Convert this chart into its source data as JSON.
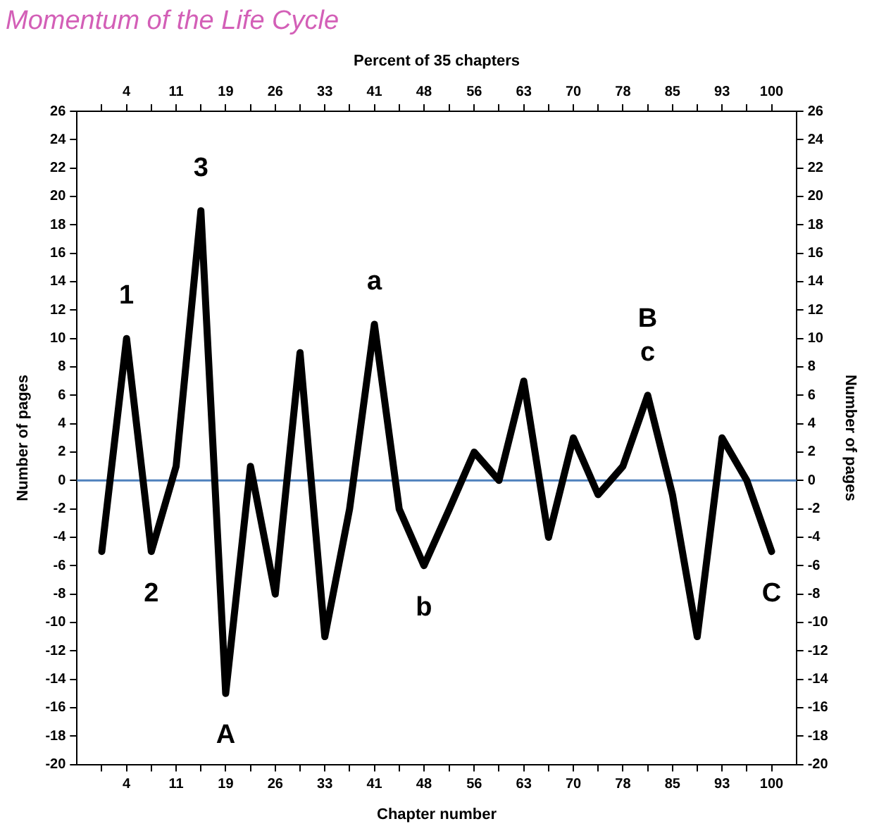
{
  "chart_data": {
    "type": "line",
    "title": "Momentum of the Life Cycle",
    "xlabel": "Chapter number",
    "x2label": "Percent of 35 chapters",
    "ylabel": "Number of pages",
    "y2label": "Number of pages",
    "x": [
      0,
      3.7,
      7.4,
      11.1,
      14.8,
      18.5,
      22.2,
      25.9,
      29.6,
      33.3,
      37,
      40.7,
      44.4,
      48.1,
      51.9,
      55.6,
      59.3,
      63,
      66.7,
      70.4,
      74.1,
      77.8,
      81.5,
      85.2,
      88.9,
      92.6,
      96.3,
      100
    ],
    "series": [
      {
        "color": "#000000",
        "values": [
          -5,
          10,
          -5,
          1,
          19,
          -15,
          1,
          -8,
          9,
          -11,
          -2,
          11,
          -2,
          -6,
          -2,
          2,
          0,
          7,
          -4,
          3,
          -1,
          1,
          6,
          -1,
          -11,
          3,
          0,
          -5
        ]
      }
    ],
    "xlim": [
      -3.7,
      103.7
    ],
    "xticks": [
      {
        "value": 0,
        "label": null
      },
      {
        "value": 3.7,
        "label": "4"
      },
      {
        "value": 7.4,
        "label": null
      },
      {
        "value": 11.1,
        "label": "11"
      },
      {
        "value": 14.8,
        "label": null
      },
      {
        "value": 18.5,
        "label": "19"
      },
      {
        "value": 22.2,
        "label": null
      },
      {
        "value": 25.9,
        "label": "26"
      },
      {
        "value": 29.6,
        "label": null
      },
      {
        "value": 33.3,
        "label": "33"
      },
      {
        "value": 37,
        "label": null
      },
      {
        "value": 40.7,
        "label": "41"
      },
      {
        "value": 44.4,
        "label": null
      },
      {
        "value": 48.1,
        "label": "48"
      },
      {
        "value": 51.9,
        "label": null
      },
      {
        "value": 55.6,
        "label": "56"
      },
      {
        "value": 59.3,
        "label": null
      },
      {
        "value": 63,
        "label": "63"
      },
      {
        "value": 66.7,
        "label": null
      },
      {
        "value": 70.4,
        "label": "70"
      },
      {
        "value": 74.1,
        "label": null
      },
      {
        "value": 77.8,
        "label": "78"
      },
      {
        "value": 81.5,
        "label": null
      },
      {
        "value": 85.2,
        "label": "85"
      },
      {
        "value": 88.9,
        "label": null
      },
      {
        "value": 92.6,
        "label": "93"
      },
      {
        "value": 96.3,
        "label": null
      },
      {
        "value": 100,
        "label": "100"
      }
    ],
    "x2lim": [
      -3.7,
      103.7
    ],
    "x2ticks": [
      {
        "value": 0,
        "label": null
      },
      {
        "value": 3.7,
        "label": "4"
      },
      {
        "value": 7.4,
        "label": null
      },
      {
        "value": 11.1,
        "label": "11"
      },
      {
        "value": 14.8,
        "label": null
      },
      {
        "value": 18.5,
        "label": "19"
      },
      {
        "value": 22.2,
        "label": null
      },
      {
        "value": 25.9,
        "label": "26"
      },
      {
        "value": 29.6,
        "label": null
      },
      {
        "value": 33.3,
        "label": "33"
      },
      {
        "value": 37,
        "label": null
      },
      {
        "value": 40.7,
        "label": "41"
      },
      {
        "value": 44.4,
        "label": null
      },
      {
        "value": 48.1,
        "label": "48"
      },
      {
        "value": 51.9,
        "label": null
      },
      {
        "value": 55.6,
        "label": "56"
      },
      {
        "value": 59.3,
        "label": null
      },
      {
        "value": 63,
        "label": "63"
      },
      {
        "value": 66.7,
        "label": null
      },
      {
        "value": 70.4,
        "label": "70"
      },
      {
        "value": 74.1,
        "label": null
      },
      {
        "value": 77.8,
        "label": "78"
      },
      {
        "value": 81.5,
        "label": null
      },
      {
        "value": 85.2,
        "label": "85"
      },
      {
        "value": 88.9,
        "label": null
      },
      {
        "value": 92.6,
        "label": "93"
      },
      {
        "value": 96.3,
        "label": null
      },
      {
        "value": 100,
        "label": "100"
      }
    ],
    "ylim": [
      -20,
      26
    ],
    "yticks": [
      -20,
      -18,
      -16,
      -14,
      -12,
      -10,
      -8,
      -6,
      -4,
      -2,
      0,
      2,
      4,
      6,
      8,
      10,
      12,
      14,
      16,
      18,
      20,
      22,
      24,
      26
    ],
    "y2lim": [
      -20,
      26
    ],
    "y2ticks": [
      -20,
      -18,
      -16,
      -14,
      -12,
      -10,
      -8,
      -6,
      -4,
      -2,
      0,
      2,
      4,
      6,
      8,
      10,
      12,
      14,
      16,
      18,
      20,
      22,
      24,
      26
    ],
    "ref_lines": [
      {
        "axis": "y",
        "value": 0,
        "label": null,
        "color": "#4f81bd"
      }
    ],
    "annotations": [
      {
        "text": "1",
        "x": 3.7,
        "y": 10
      },
      {
        "text": "2",
        "x": 7.4,
        "y": -5
      },
      {
        "text": "3",
        "x": 14.8,
        "y": 19
      },
      {
        "text": "A",
        "x": 18.5,
        "y": -15
      },
      {
        "text": "a",
        "x": 40.7,
        "y": 11
      },
      {
        "text": "b",
        "x": 48.1,
        "y": -6
      },
      {
        "text": "B",
        "x": 81.5,
        "y": 6
      },
      {
        "text": "c",
        "x": 81.5,
        "y": 6
      },
      {
        "text": "C",
        "x": 100,
        "y": -5
      }
    ],
    "grid": false,
    "legend": false,
    "marker": "none",
    "line_style": "solid"
  }
}
